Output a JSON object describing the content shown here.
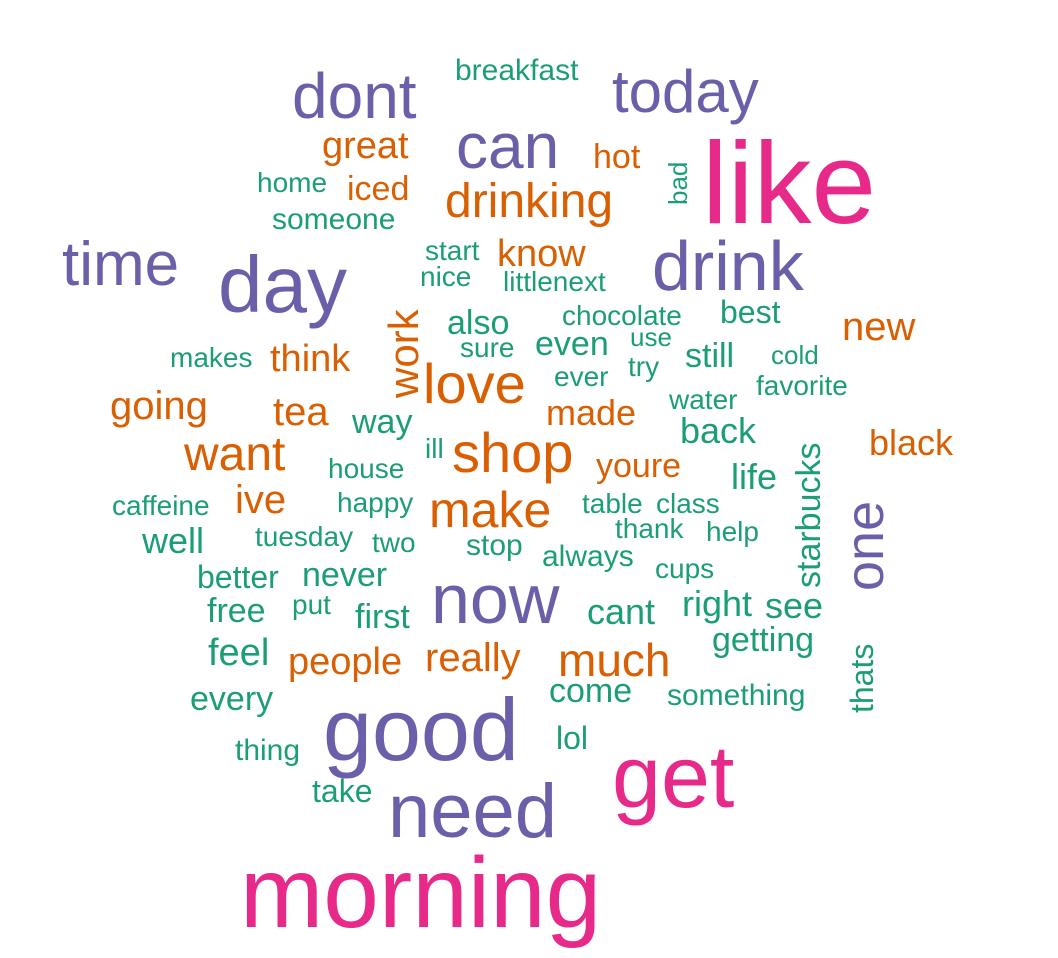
{
  "colors": {
    "magenta": "#e7298a",
    "purple": "#6a5fa8",
    "orange": "#d95f02",
    "green": "#1b9e77"
  },
  "words": [
    {
      "text": "morning",
      "group": "magenta"
    },
    {
      "text": "like",
      "group": "magenta"
    },
    {
      "text": "get",
      "group": "magenta"
    },
    {
      "text": "good",
      "group": "purple"
    },
    {
      "text": "need",
      "group": "purple"
    },
    {
      "text": "now",
      "group": "purple"
    },
    {
      "text": "day",
      "group": "purple"
    },
    {
      "text": "drink",
      "group": "purple"
    },
    {
      "text": "dont",
      "group": "purple"
    },
    {
      "text": "today",
      "group": "purple"
    },
    {
      "text": "can",
      "group": "purple"
    },
    {
      "text": "time",
      "group": "purple"
    },
    {
      "text": "one",
      "group": "purple"
    },
    {
      "text": "love",
      "group": "orange"
    },
    {
      "text": "shop",
      "group": "orange"
    },
    {
      "text": "make",
      "group": "orange"
    },
    {
      "text": "drinking",
      "group": "orange"
    },
    {
      "text": "want",
      "group": "orange"
    },
    {
      "text": "much",
      "group": "orange"
    },
    {
      "text": "work",
      "group": "orange"
    },
    {
      "text": "know",
      "group": "orange"
    },
    {
      "text": "new",
      "group": "orange"
    },
    {
      "text": "great",
      "group": "orange"
    },
    {
      "text": "tea",
      "group": "orange"
    },
    {
      "text": "think",
      "group": "orange"
    },
    {
      "text": "really",
      "group": "orange"
    },
    {
      "text": "people",
      "group": "orange"
    },
    {
      "text": "made",
      "group": "orange"
    },
    {
      "text": "going",
      "group": "orange"
    },
    {
      "text": "black",
      "group": "orange"
    },
    {
      "text": "youre",
      "group": "orange"
    },
    {
      "text": "ive",
      "group": "orange"
    },
    {
      "text": "hot",
      "group": "orange"
    },
    {
      "text": "iced",
      "group": "orange"
    },
    {
      "text": "breakfast",
      "group": "green"
    },
    {
      "text": "home",
      "group": "green"
    },
    {
      "text": "someone",
      "group": "green"
    },
    {
      "text": "bad",
      "group": "green"
    },
    {
      "text": "start",
      "group": "green"
    },
    {
      "text": "nice",
      "group": "green"
    },
    {
      "text": "littlenext",
      "group": "green"
    },
    {
      "text": "chocolate",
      "group": "green"
    },
    {
      "text": "best",
      "group": "green"
    },
    {
      "text": "also",
      "group": "green"
    },
    {
      "text": "use",
      "group": "green"
    },
    {
      "text": "sure",
      "group": "green"
    },
    {
      "text": "even",
      "group": "green"
    },
    {
      "text": "still",
      "group": "green"
    },
    {
      "text": "try",
      "group": "green"
    },
    {
      "text": "cold",
      "group": "green"
    },
    {
      "text": "makes",
      "group": "green"
    },
    {
      "text": "ever",
      "group": "green"
    },
    {
      "text": "favorite",
      "group": "green"
    },
    {
      "text": "water",
      "group": "green"
    },
    {
      "text": "way",
      "group": "green"
    },
    {
      "text": "back",
      "group": "green"
    },
    {
      "text": "ill",
      "group": "green"
    },
    {
      "text": "house",
      "group": "green"
    },
    {
      "text": "life",
      "group": "green"
    },
    {
      "text": "starbucks",
      "group": "green"
    },
    {
      "text": "caffeine",
      "group": "green"
    },
    {
      "text": "happy",
      "group": "green"
    },
    {
      "text": "table",
      "group": "green"
    },
    {
      "text": "class",
      "group": "green"
    },
    {
      "text": "thank",
      "group": "green"
    },
    {
      "text": "help",
      "group": "green"
    },
    {
      "text": "well",
      "group": "green"
    },
    {
      "text": "tuesday",
      "group": "green"
    },
    {
      "text": "two",
      "group": "green"
    },
    {
      "text": "stop",
      "group": "green"
    },
    {
      "text": "always",
      "group": "green"
    },
    {
      "text": "cups",
      "group": "green"
    },
    {
      "text": "better",
      "group": "green"
    },
    {
      "text": "never",
      "group": "green"
    },
    {
      "text": "free",
      "group": "green"
    },
    {
      "text": "put",
      "group": "green"
    },
    {
      "text": "first",
      "group": "green"
    },
    {
      "text": "cant",
      "group": "green"
    },
    {
      "text": "right",
      "group": "green"
    },
    {
      "text": "see",
      "group": "green"
    },
    {
      "text": "getting",
      "group": "green"
    },
    {
      "text": "feel",
      "group": "green"
    },
    {
      "text": "thats",
      "group": "green"
    },
    {
      "text": "come",
      "group": "green"
    },
    {
      "text": "something",
      "group": "green"
    },
    {
      "text": "every",
      "group": "green"
    },
    {
      "text": "thing",
      "group": "green"
    },
    {
      "text": "lol",
      "group": "green"
    },
    {
      "text": "take",
      "group": "green"
    }
  ]
}
